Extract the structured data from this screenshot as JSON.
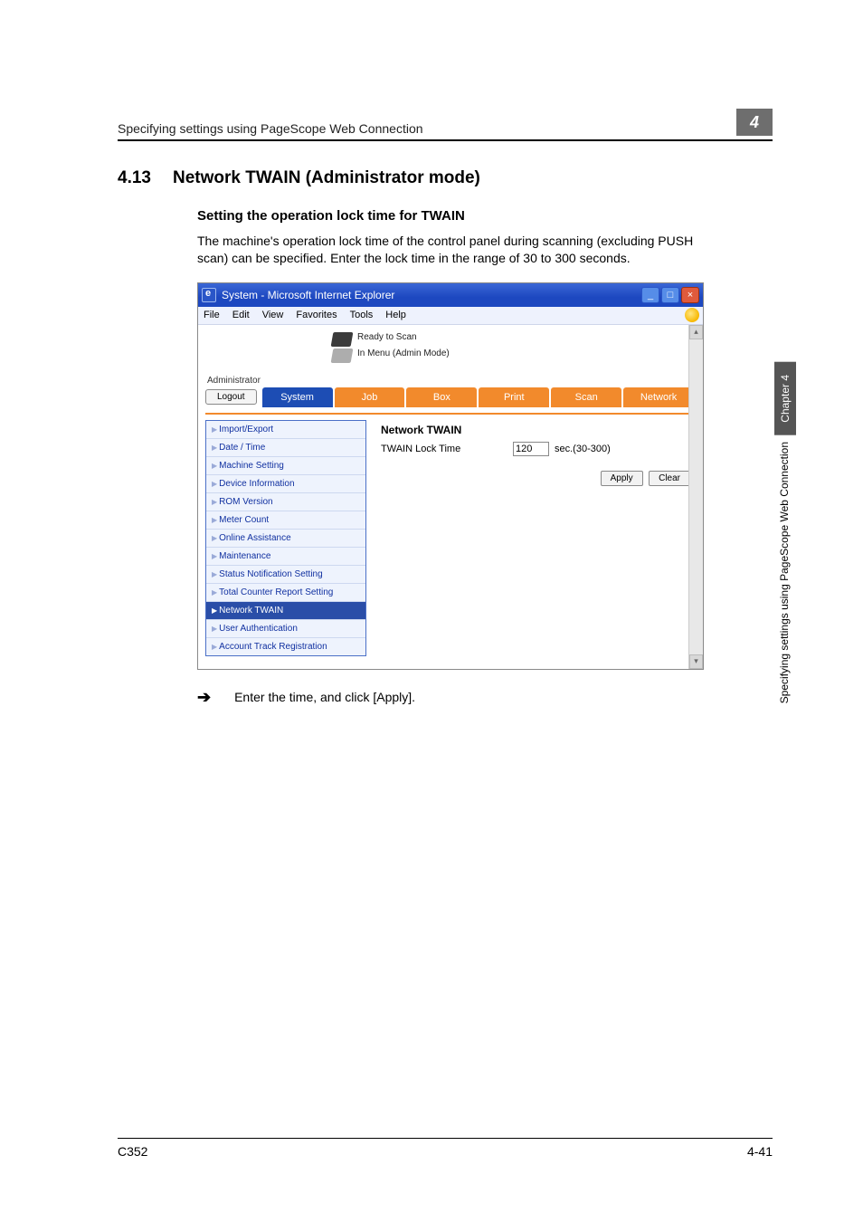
{
  "running_head": "Specifying settings using PageScope Web Connection",
  "chapter_number": "4",
  "section_number": "4.13",
  "section_title": "Network TWAIN (Administrator mode)",
  "subheading": "Setting the operation lock time for TWAIN",
  "body": "The machine's operation lock time of the control panel during scanning (excluding PUSH scan) can be specified. Enter the lock time in the range of 30 to 300 seconds.",
  "screenshot": {
    "window_title": "System - Microsoft Internet Explorer",
    "menus": [
      "File",
      "Edit",
      "View",
      "Favorites",
      "Tools",
      "Help"
    ],
    "status1": "Ready to Scan",
    "status2": "In Menu (Admin Mode)",
    "admin_label": "Administrator",
    "logout": "Logout",
    "tabs": {
      "system": "System",
      "job": "Job",
      "box": "Box",
      "print": "Print",
      "scan": "Scan",
      "network": "Network"
    },
    "sidebar": [
      "Import/Export",
      "Date / Time",
      "Machine Setting",
      "Device Information",
      "ROM Version",
      "Meter Count",
      "Online Assistance",
      "Maintenance",
      "Status Notification Setting",
      "Total Counter Report Setting",
      "Network TWAIN",
      "User Authentication",
      "Account Track Registration"
    ],
    "sidebar_selected_index": 10,
    "panel_title": "Network TWAIN",
    "field_label": "TWAIN Lock Time",
    "field_value": "120",
    "field_unit": "sec.(30-300)",
    "apply": "Apply",
    "clear": "Clear"
  },
  "instruction": "Enter the time, and click [Apply].",
  "side_tab_chapter": "Chapter 4",
  "side_tab_text": "Specifying settings using PageScope Web Connection",
  "footer_left": "C352",
  "footer_right": "4-41"
}
